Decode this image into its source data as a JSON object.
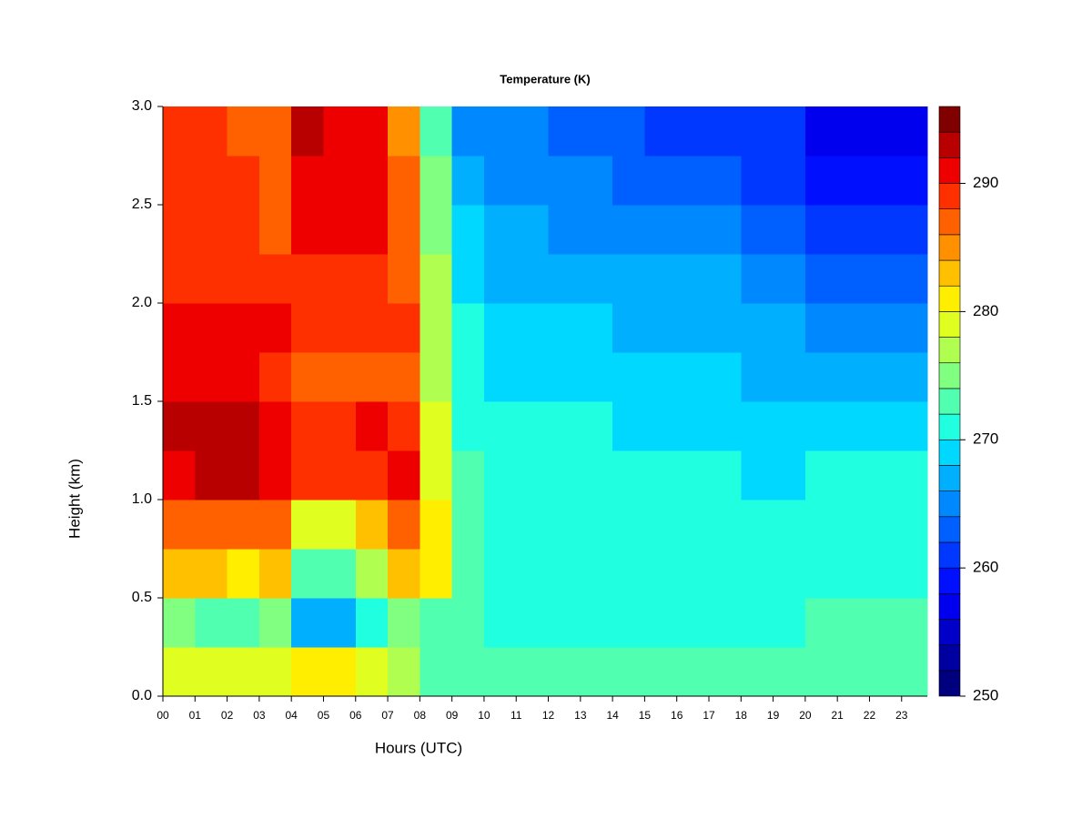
{
  "chart_data": {
    "type": "heatmap",
    "title": "Temperature (K)",
    "xlabel": "Hours (UTC)",
    "ylabel": "Height (km)",
    "x": [
      0,
      1,
      2,
      3,
      4,
      5,
      6,
      7,
      8,
      9,
      10,
      11,
      12,
      13,
      14,
      15,
      16,
      17,
      18,
      19,
      20,
      21,
      22,
      23
    ],
    "y": [
      0,
      0.25,
      0.5,
      0.75,
      1,
      1.25,
      1.5,
      1.75,
      2,
      2.25,
      2.5,
      2.75
    ],
    "z": [
      [
        278,
        278,
        278,
        278,
        280,
        280,
        278,
        276,
        272,
        272,
        272,
        272,
        272,
        272,
        272,
        272,
        272,
        272,
        272,
        272,
        272,
        272,
        272,
        272
      ],
      [
        274,
        272,
        272,
        274,
        266,
        266,
        270,
        274,
        272,
        272,
        270,
        270,
        270,
        270,
        270,
        270,
        270,
        270,
        270,
        270,
        272,
        272,
        272,
        272
      ],
      [
        282,
        282,
        280,
        282,
        272,
        272,
        276,
        282,
        280,
        272,
        270,
        270,
        270,
        270,
        270,
        270,
        270,
        270,
        270,
        270,
        270,
        270,
        270,
        270
      ],
      [
        286,
        286,
        286,
        286,
        278,
        278,
        282,
        286,
        280,
        272,
        270,
        270,
        270,
        270,
        270,
        270,
        270,
        270,
        270,
        270,
        270,
        270,
        270,
        270
      ],
      [
        290,
        292,
        292,
        290,
        288,
        288,
        288,
        290,
        278,
        272,
        270,
        270,
        270,
        270,
        270,
        270,
        270,
        270,
        268,
        268,
        270,
        270,
        270,
        270
      ],
      [
        292,
        292,
        292,
        290,
        288,
        288,
        290,
        288,
        278,
        270,
        270,
        270,
        270,
        270,
        268,
        268,
        268,
        268,
        268,
        268,
        268,
        268,
        268,
        268
      ],
      [
        290,
        290,
        290,
        288,
        286,
        286,
        286,
        286,
        276,
        270,
        268,
        268,
        268,
        268,
        268,
        268,
        268,
        268,
        266,
        266,
        266,
        266,
        266,
        266
      ],
      [
        290,
        290,
        290,
        290,
        288,
        288,
        288,
        288,
        276,
        270,
        268,
        268,
        268,
        268,
        266,
        266,
        266,
        266,
        266,
        266,
        264,
        264,
        264,
        264
      ],
      [
        288,
        288,
        288,
        288,
        288,
        288,
        288,
        286,
        276,
        268,
        266,
        266,
        266,
        266,
        266,
        266,
        266,
        266,
        264,
        264,
        262,
        262,
        262,
        262
      ],
      [
        288,
        288,
        288,
        286,
        290,
        290,
        290,
        286,
        274,
        268,
        266,
        266,
        264,
        264,
        264,
        264,
        264,
        264,
        262,
        262,
        260,
        260,
        260,
        260
      ],
      [
        288,
        288,
        288,
        286,
        290,
        290,
        290,
        286,
        274,
        266,
        264,
        264,
        264,
        264,
        262,
        262,
        262,
        262,
        260,
        260,
        258,
        258,
        258,
        258
      ],
      [
        288,
        288,
        286,
        286,
        292,
        290,
        290,
        284,
        272,
        264,
        264,
        264,
        262,
        262,
        262,
        260,
        260,
        260,
        260,
        260,
        256,
        256,
        256,
        256
      ]
    ],
    "xlim": [
      0,
      23.8
    ],
    "ylim": [
      0,
      3
    ],
    "xticks": [
      {
        "value": 0,
        "label": "00"
      },
      {
        "value": 1,
        "label": "01"
      },
      {
        "value": 2,
        "label": "02"
      },
      {
        "value": 3,
        "label": "03"
      },
      {
        "value": 4,
        "label": "04"
      },
      {
        "value": 5,
        "label": "05"
      },
      {
        "value": 6,
        "label": "06"
      },
      {
        "value": 7,
        "label": "07"
      },
      {
        "value": 8,
        "label": "08"
      },
      {
        "value": 9,
        "label": "09"
      },
      10,
      11,
      12,
      13,
      14,
      15,
      16,
      17,
      18,
      19,
      20,
      21,
      22,
      23
    ],
    "yticks": [
      {
        "value": 0,
        "label": "0.0"
      },
      0.5,
      {
        "value": 1,
        "label": "1.0"
      },
      1.5,
      {
        "value": 2,
        "label": "2.0"
      },
      2.5,
      {
        "value": 3,
        "label": "3.0"
      }
    ],
    "levels": [
      250,
      252,
      254,
      256,
      258,
      260,
      262,
      264,
      266,
      268,
      270,
      272,
      274,
      276,
      278,
      280,
      282,
      284,
      286,
      288,
      290,
      292,
      294,
      296
    ],
    "colors": [
      "#00007f",
      "#0000a0",
      "#0000c8",
      "#0000ee",
      "#0010ff",
      "#0038ff",
      "#0060ff",
      "#0088ff",
      "#00b0ff",
      "#00d8ff",
      "#20ffe0",
      "#50ffb0",
      "#80ff80",
      "#b0ff50",
      "#e0ff20",
      "#ffee00",
      "#ffc000",
      "#ff9000",
      "#ff6000",
      "#ff3000",
      "#ee0000",
      "#b80000",
      "#800000"
    ],
    "colorbar_ticks": [
      250,
      260,
      270,
      280,
      290
    ]
  }
}
